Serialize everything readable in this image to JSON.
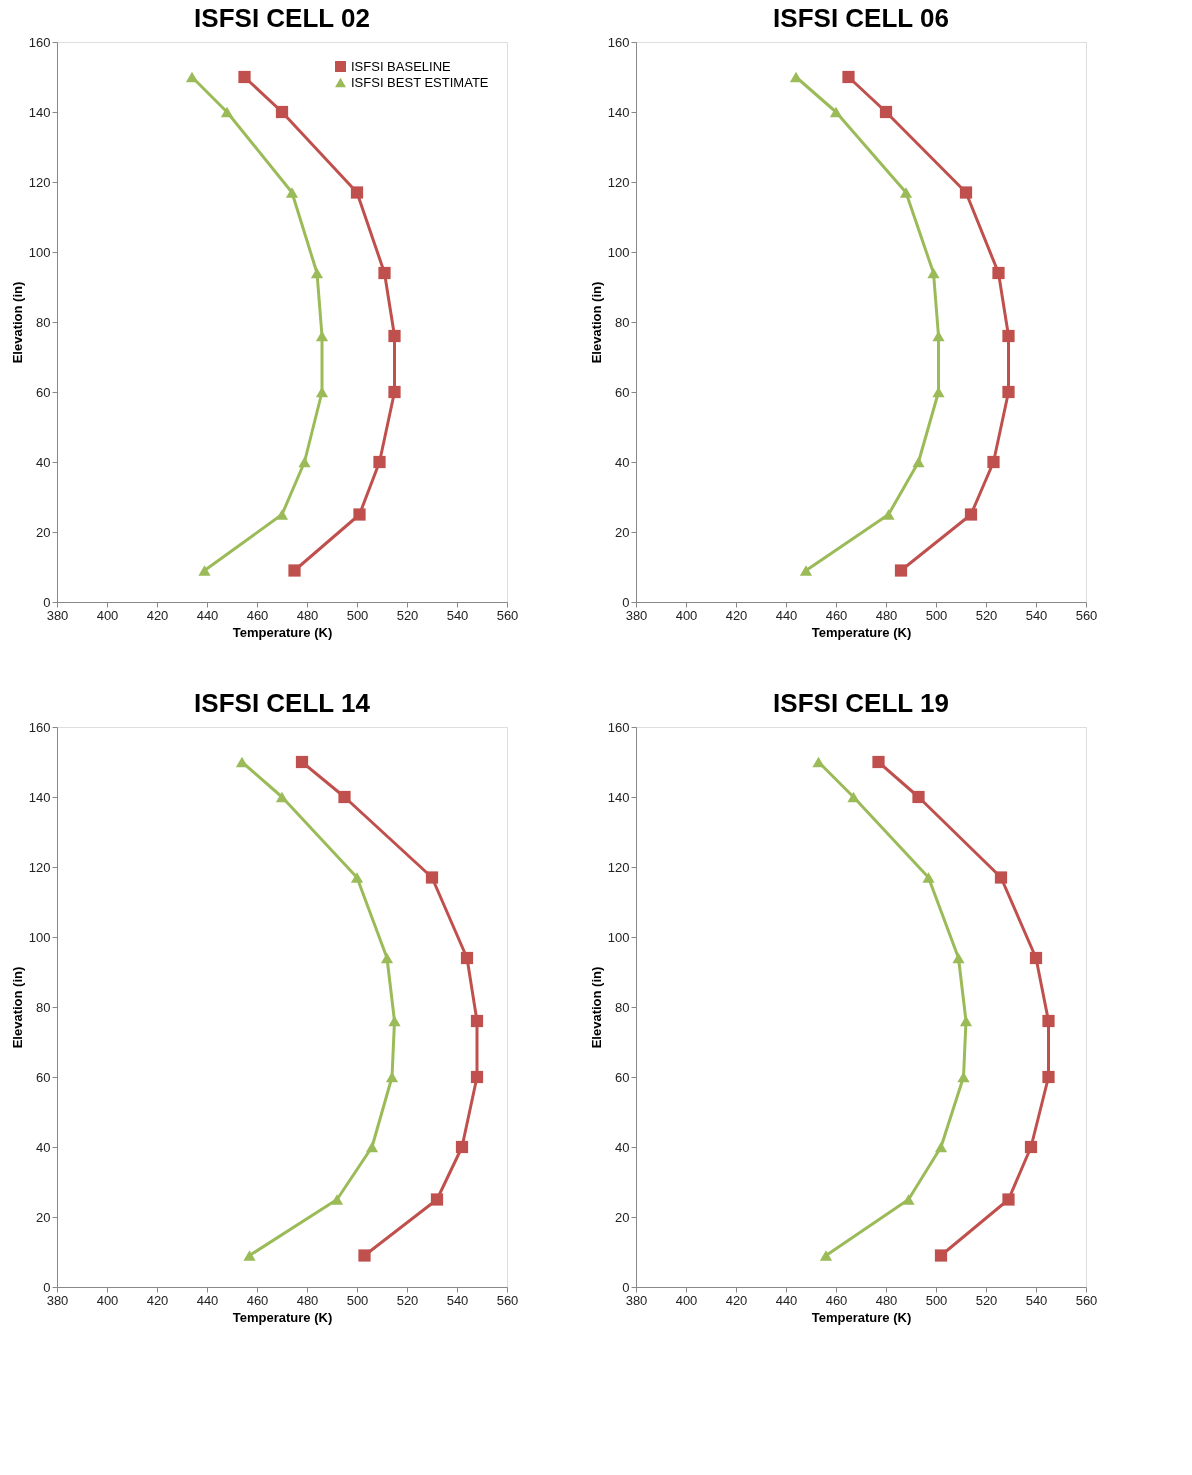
{
  "chart_data": [
    {
      "type": "line",
      "title": "ISFSI CELL 02",
      "xlabel": "Temperature (K)",
      "ylabel": "Elevation  (in)",
      "xlim": [
        380,
        560
      ],
      "xticks": [
        380,
        400,
        420,
        440,
        460,
        480,
        500,
        520,
        540,
        560
      ],
      "ylim": [
        0,
        160
      ],
      "yticks": [
        0,
        20,
        40,
        60,
        80,
        100,
        120,
        140,
        160
      ],
      "grid": false,
      "legend": "top right",
      "series": [
        {
          "name": "ISFSI BASELINE",
          "color": "#c0504d",
          "marker": "square",
          "x": [
            455,
            470,
            500,
            511,
            515,
            515,
            509,
            501,
            475
          ],
          "values": [
            150,
            140,
            117,
            94,
            76,
            60,
            40,
            25,
            9
          ]
        },
        {
          "name": "ISFSI BEST ESTIMATE",
          "color": "#9bbb59",
          "marker": "triangle",
          "x": [
            434,
            448,
            474,
            484,
            486,
            486,
            479,
            470,
            439
          ],
          "values": [
            150,
            140,
            117,
            94,
            76,
            60,
            40,
            25,
            9
          ]
        }
      ]
    },
    {
      "type": "line",
      "title": "ISFSI CELL 06",
      "xlabel": "Temperature (K)",
      "ylabel": "Elevation  (in)",
      "xlim": [
        380,
        560
      ],
      "xticks": [
        380,
        400,
        420,
        440,
        460,
        480,
        500,
        520,
        540,
        560
      ],
      "ylim": [
        0,
        160
      ],
      "yticks": [
        0,
        20,
        40,
        60,
        80,
        100,
        120,
        140,
        160
      ],
      "grid": false,
      "legend": false,
      "series": [
        {
          "color": "#c0504d",
          "marker": "square",
          "x": [
            465,
            480,
            512,
            525,
            529,
            529,
            523,
            514,
            486
          ],
          "values": [
            150,
            140,
            117,
            94,
            76,
            60,
            40,
            25,
            9
          ]
        },
        {
          "color": "#9bbb59",
          "marker": "triangle",
          "x": [
            444,
            460,
            488,
            499,
            501,
            501,
            493,
            481,
            448
          ],
          "values": [
            150,
            140,
            117,
            94,
            76,
            60,
            40,
            25,
            9
          ]
        }
      ]
    },
    {
      "type": "line",
      "title": "ISFSI CELL 14",
      "xlabel": "Temperature (K)",
      "ylabel": "Elevation  (in)",
      "xlim": [
        380,
        560
      ],
      "xticks": [
        380,
        400,
        420,
        440,
        460,
        480,
        500,
        520,
        540,
        560
      ],
      "ylim": [
        0,
        160
      ],
      "yticks": [
        0,
        20,
        40,
        60,
        80,
        100,
        120,
        140,
        160
      ],
      "grid": false,
      "legend": false,
      "series": [
        {
          "color": "#c0504d",
          "marker": "square",
          "x": [
            478,
            495,
            530,
            544,
            548,
            548,
            542,
            532,
            503
          ],
          "values": [
            150,
            140,
            117,
            94,
            76,
            60,
            40,
            25,
            9
          ]
        },
        {
          "color": "#9bbb59",
          "marker": "triangle",
          "x": [
            454,
            470,
            500,
            512,
            515,
            514,
            506,
            492,
            457
          ],
          "values": [
            150,
            140,
            117,
            94,
            76,
            60,
            40,
            25,
            9
          ]
        }
      ]
    },
    {
      "type": "line",
      "title": "ISFSI CELL 19",
      "xlabel": "Temperature (K)",
      "ylabel": "Elevation  (in)",
      "xlim": [
        380,
        560
      ],
      "xticks": [
        380,
        400,
        420,
        440,
        460,
        480,
        500,
        520,
        540,
        560
      ],
      "ylim": [
        0,
        160
      ],
      "yticks": [
        0,
        20,
        40,
        60,
        80,
        100,
        120,
        140,
        160
      ],
      "grid": false,
      "legend": false,
      "series": [
        {
          "color": "#c0504d",
          "marker": "square",
          "x": [
            477,
            493,
            526,
            540,
            545,
            545,
            538,
            529,
            502
          ],
          "values": [
            150,
            140,
            117,
            94,
            76,
            60,
            40,
            25,
            9
          ]
        },
        {
          "color": "#9bbb59",
          "marker": "triangle",
          "x": [
            453,
            467,
            497,
            509,
            512,
            511,
            502,
            489,
            456
          ],
          "values": [
            150,
            140,
            117,
            94,
            76,
            60,
            40,
            25,
            9
          ]
        }
      ]
    }
  ]
}
